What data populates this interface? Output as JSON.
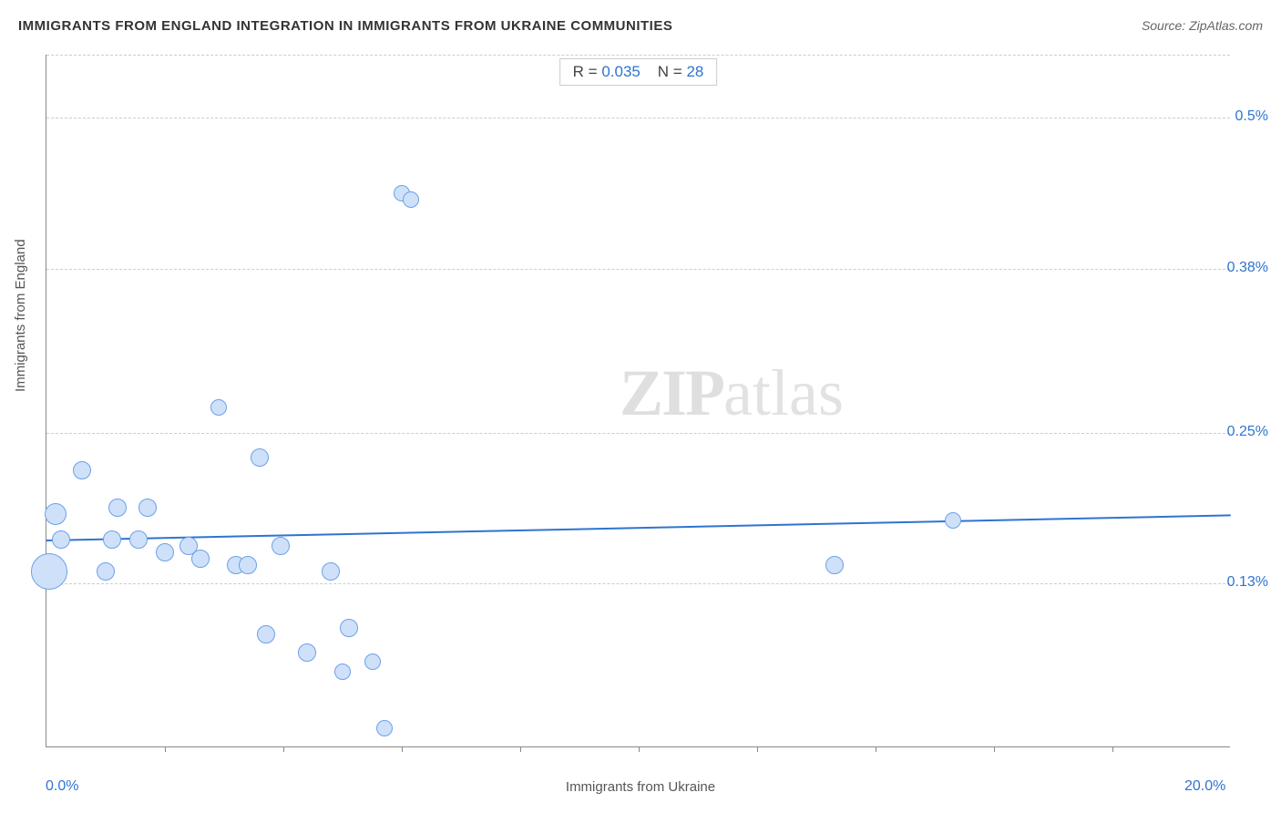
{
  "header": {
    "title": "IMMIGRANTS FROM ENGLAND INTEGRATION IN IMMIGRANTS FROM UKRAINE COMMUNITIES",
    "source": "Source: ZipAtlas.com"
  },
  "watermark": {
    "left": "ZIP",
    "right": "atlas"
  },
  "stats": {
    "r_label": "R =",
    "r_value": "0.035",
    "n_label": "N =",
    "n_value": "28"
  },
  "chart": {
    "type": "scatter",
    "x_label": "Immigrants from Ukraine",
    "y_label": "Immigrants from England",
    "xlim": [
      0.0,
      20.0
    ],
    "ylim": [
      0.0,
      0.55
    ],
    "x_ticks_major": [
      0.0,
      20.0
    ],
    "x_ticks_major_labels": [
      "0.0%",
      "20.0%"
    ],
    "x_ticks_minor": [
      2.0,
      4.0,
      6.0,
      8.0,
      10.0,
      12.0,
      14.0,
      16.0,
      18.0
    ],
    "y_ticks": [
      0.13,
      0.25,
      0.38,
      0.5
    ],
    "y_ticks_labels": [
      "0.13%",
      "0.25%",
      "0.38%",
      "0.5%"
    ],
    "gridlines_y": [
      0.13,
      0.25,
      0.38,
      0.5,
      0.55
    ],
    "point_fill": "#cfe1f9",
    "point_stroke": "#6ca0e8",
    "point_stroke_width": 1.5,
    "regression_line": {
      "x1": 0.0,
      "y1": 0.165,
      "x2": 20.0,
      "y2": 0.185,
      "color": "#2f74d0",
      "width": 2
    },
    "background_color": "#ffffff",
    "grid_color": "#cccccc",
    "points": [
      {
        "x": 0.05,
        "y": 0.14,
        "r": 20
      },
      {
        "x": 0.15,
        "y": 0.185,
        "r": 12
      },
      {
        "x": 0.25,
        "y": 0.165,
        "r": 10
      },
      {
        "x": 0.6,
        "y": 0.22,
        "r": 10
      },
      {
        "x": 1.0,
        "y": 0.14,
        "r": 10
      },
      {
        "x": 1.1,
        "y": 0.165,
        "r": 10
      },
      {
        "x": 1.2,
        "y": 0.19,
        "r": 10
      },
      {
        "x": 1.7,
        "y": 0.19,
        "r": 10
      },
      {
        "x": 1.55,
        "y": 0.165,
        "r": 10
      },
      {
        "x": 2.0,
        "y": 0.155,
        "r": 10
      },
      {
        "x": 2.4,
        "y": 0.16,
        "r": 10
      },
      {
        "x": 2.6,
        "y": 0.15,
        "r": 10
      },
      {
        "x": 2.9,
        "y": 0.27,
        "r": 9
      },
      {
        "x": 3.2,
        "y": 0.145,
        "r": 10
      },
      {
        "x": 3.4,
        "y": 0.145,
        "r": 10
      },
      {
        "x": 3.6,
        "y": 0.23,
        "r": 10
      },
      {
        "x": 3.7,
        "y": 0.09,
        "r": 10
      },
      {
        "x": 3.95,
        "y": 0.16,
        "r": 10
      },
      {
        "x": 4.4,
        "y": 0.075,
        "r": 10
      },
      {
        "x": 4.8,
        "y": 0.14,
        "r": 10
      },
      {
        "x": 5.0,
        "y": 0.06,
        "r": 9
      },
      {
        "x": 5.1,
        "y": 0.095,
        "r": 10
      },
      {
        "x": 5.5,
        "y": 0.068,
        "r": 9
      },
      {
        "x": 5.7,
        "y": 0.015,
        "r": 9
      },
      {
        "x": 6.0,
        "y": 0.44,
        "r": 9
      },
      {
        "x": 6.15,
        "y": 0.435,
        "r": 9
      },
      {
        "x": 13.3,
        "y": 0.145,
        "r": 10
      },
      {
        "x": 15.3,
        "y": 0.18,
        "r": 9
      }
    ]
  }
}
